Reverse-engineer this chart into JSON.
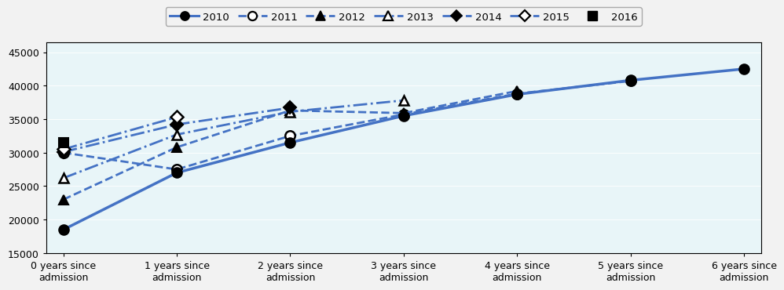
{
  "series_order": [
    "2010",
    "2011",
    "2012",
    "2013",
    "2014",
    "2015",
    "2016"
  ],
  "series": {
    "2010": {
      "x": [
        0,
        1,
        2,
        3,
        4,
        5,
        6
      ],
      "y": [
        18500,
        27000,
        31500,
        35500,
        38700,
        40800,
        42500
      ],
      "linestyle": "solid",
      "marker": "o",
      "markerfacecolor": "black",
      "markersize": 9,
      "linewidth": 2.5,
      "color": "#4472C4",
      "zorder": 5
    },
    "2011": {
      "x": [
        0,
        1,
        2,
        3,
        4,
        5
      ],
      "y": [
        30000,
        27500,
        32500,
        35700,
        38800,
        40700
      ],
      "linestyle": "dashed",
      "marker": "o",
      "markerfacecolor": "white",
      "markersize": 9,
      "linewidth": 2.0,
      "color": "#4472C4",
      "zorder": 4
    },
    "2012": {
      "x": [
        0,
        1,
        2,
        3,
        4
      ],
      "y": [
        23000,
        30800,
        36300,
        35900,
        39200
      ],
      "linestyle": "dashed",
      "marker": "^",
      "markerfacecolor": "black",
      "markersize": 9,
      "linewidth": 2.0,
      "color": "#4472C4",
      "zorder": 4
    },
    "2013": {
      "x": [
        0,
        1,
        2,
        3
      ],
      "y": [
        26200,
        32700,
        36100,
        37800
      ],
      "linestyle": "dashdot",
      "marker": "^",
      "markerfacecolor": "white",
      "markersize": 9,
      "linewidth": 2.0,
      "color": "#4472C4",
      "zorder": 4
    },
    "2014": {
      "x": [
        0,
        1,
        2
      ],
      "y": [
        30100,
        34200,
        36700
      ],
      "linestyle": "dashdot",
      "marker": "D",
      "markerfacecolor": "black",
      "markersize": 8,
      "linewidth": 2.0,
      "color": "#4472C4",
      "zorder": 4
    },
    "2015": {
      "x": [
        0,
        1
      ],
      "y": [
        30500,
        35300
      ],
      "linestyle": "dashdot",
      "marker": "D",
      "markerfacecolor": "white",
      "markersize": 8,
      "linewidth": 2.0,
      "color": "#4472C4",
      "zorder": 4
    },
    "2016": {
      "x": [
        0
      ],
      "y": [
        31500
      ],
      "linestyle": "solid",
      "marker": "s",
      "markerfacecolor": "black",
      "markersize": 9,
      "linewidth": 0,
      "color": "#4472C4",
      "zorder": 6
    }
  },
  "xlim": [
    -0.15,
    6.15
  ],
  "ylim": [
    15000,
    46500
  ],
  "yticks": [
    15000,
    20000,
    25000,
    30000,
    35000,
    40000,
    45000
  ],
  "xtick_labels": [
    "0 years since\nadmission",
    "1 years since\nadmission",
    "2 years since\nadmission",
    "3 years since\nadmission",
    "4 years since\nadmission",
    "5 years since\nadmission",
    "6 years since\nadmission"
  ],
  "plot_bg_color": "#e8f5f8",
  "fig_bg_color": "#f2f2f2",
  "line_color": "#4472C4",
  "legend_labels": [
    "2010",
    "2011",
    "2012",
    "2013",
    "2014",
    "2015",
    "2016"
  ]
}
